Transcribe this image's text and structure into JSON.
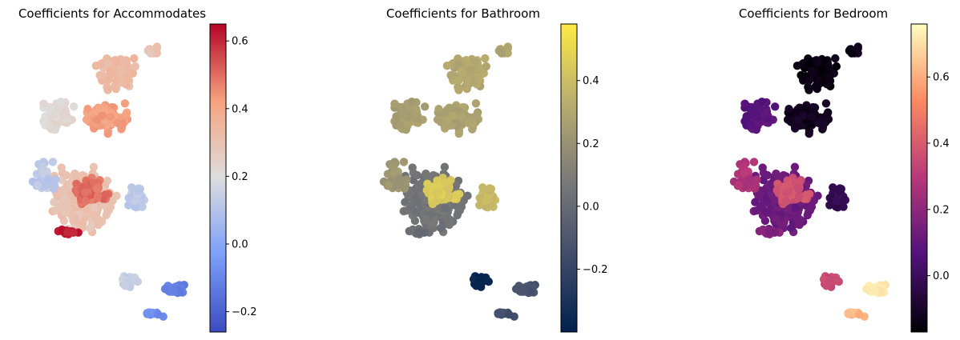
{
  "chart_data": [
    {
      "type": "scatter",
      "title": "Coefficients for Accommodates",
      "colormap": "coolwarm",
      "colorbar": {
        "min": -0.26,
        "max": 0.65,
        "ticks": [
          -0.2,
          0.0,
          0.2,
          0.4,
          0.6
        ],
        "tick_labels": [
          "−0.2",
          "0.0",
          "0.2",
          "0.4",
          "0.6"
        ]
      },
      "axes_visible": false,
      "clusters": [
        {
          "region": "north",
          "value": 0.33
        },
        {
          "region": "north-east",
          "value": 0.3
        },
        {
          "region": "north-west",
          "value": 0.22
        },
        {
          "region": "north-center",
          "value": 0.42
        },
        {
          "region": "center",
          "value": 0.3
        },
        {
          "region": "west",
          "value": 0.12
        },
        {
          "region": "center-red",
          "value": 0.5
        },
        {
          "region": "center-dark-red",
          "value": 0.62
        },
        {
          "region": "east",
          "value": 0.12
        },
        {
          "region": "south",
          "value": 0.14
        },
        {
          "region": "south-east",
          "value": -0.12
        },
        {
          "region": "south-far",
          "value": -0.08
        }
      ]
    },
    {
      "type": "scatter",
      "title": "Coefficients for Bathroom",
      "colormap": "cividis",
      "colorbar": {
        "min": -0.4,
        "max": 0.58,
        "ticks": [
          -0.2,
          0.0,
          0.2,
          0.4
        ],
        "tick_labels": [
          "−0.2",
          "0.0",
          "0.2",
          "0.4"
        ]
      },
      "axes_visible": false,
      "clusters": [
        {
          "region": "north",
          "value": 0.3
        },
        {
          "region": "north-east",
          "value": 0.28
        },
        {
          "region": "north-west",
          "value": 0.26
        },
        {
          "region": "north-center",
          "value": 0.27
        },
        {
          "region": "center",
          "value": 0.05
        },
        {
          "region": "west",
          "value": 0.22
        },
        {
          "region": "center-red",
          "value": 0.45
        },
        {
          "region": "center-dark-red",
          "value": 0.02
        },
        {
          "region": "east",
          "value": 0.38
        },
        {
          "region": "south",
          "value": -0.38
        },
        {
          "region": "south-east",
          "value": -0.12
        },
        {
          "region": "south-far",
          "value": -0.15
        }
      ]
    },
    {
      "type": "scatter",
      "title": "Coefficients for Bedroom",
      "colormap": "magma",
      "colorbar": {
        "min": -0.17,
        "max": 0.76,
        "ticks": [
          0.0,
          0.2,
          0.4,
          0.6
        ],
        "tick_labels": [
          "0.0",
          "0.2",
          "0.4",
          "0.6"
        ]
      },
      "axes_visible": false,
      "clusters": [
        {
          "region": "north",
          "value": -0.15
        },
        {
          "region": "north-east",
          "value": -0.13
        },
        {
          "region": "north-west",
          "value": 0.08
        },
        {
          "region": "north-center",
          "value": -0.12
        },
        {
          "region": "center",
          "value": 0.12
        },
        {
          "region": "west",
          "value": 0.28
        },
        {
          "region": "center-red",
          "value": 0.38
        },
        {
          "region": "center-dark-red",
          "value": 0.18
        },
        {
          "region": "east",
          "value": -0.02
        },
        {
          "region": "south",
          "value": 0.35
        },
        {
          "region": "south-east",
          "value": 0.72
        },
        {
          "region": "south-far",
          "value": 0.62
        }
      ]
    }
  ]
}
